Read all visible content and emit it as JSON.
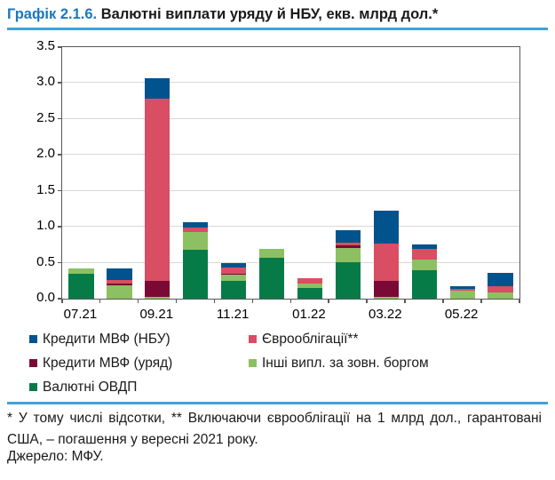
{
  "title": {
    "prefix": "Графік 2.1.6.",
    "text": " Валютні виплати уряду й НБУ, екв. млрд дол.*"
  },
  "colors": {
    "title_prefix_blue": "#1878BE",
    "rule_light_blue": "#41A1D8",
    "axis_gray": "#595959",
    "gridline_gray": "#D8D8D8",
    "imf_nbu_blue": "#00538D",
    "imf_gov_maroon": "#7A0A35",
    "ovdp_green": "#067B48",
    "eurobond_pink": "#D94E62",
    "other_light_green": "#8CC063"
  },
  "chart_data": {
    "type": "bar",
    "stacked": true,
    "title": "Валютні виплати уряду й НБУ, екв. млрд дол.",
    "xlabel": "",
    "ylabel": "",
    "ylim": [
      0,
      3.5
    ],
    "y_ticks": [
      0.0,
      0.5,
      1.0,
      1.5,
      2.0,
      2.5,
      3.0,
      3.5
    ],
    "grid": true,
    "legend_position": "bottom",
    "categories": [
      "07.21",
      "08.21",
      "09.21",
      "10.21",
      "11.21",
      "12.21",
      "01.22",
      "02.22",
      "03.22",
      "04.22",
      "05.22",
      "06.22"
    ],
    "x_tick_labels": [
      "07.21",
      "09.21",
      "11.21",
      "01.22",
      "03.22",
      "05.22"
    ],
    "series": [
      {
        "name": "Валютні ОВДП",
        "color": "#067B48",
        "values": [
          0.35,
          0.0,
          0.0,
          0.68,
          0.25,
          0.57,
          0.15,
          0.51,
          0.0,
          0.4,
          0.0,
          0.0
        ]
      },
      {
        "name": "Інші випл. за зовн. боргом",
        "color": "#8CC063",
        "values": [
          0.07,
          0.18,
          0.03,
          0.25,
          0.08,
          0.12,
          0.06,
          0.2,
          0.03,
          0.15,
          0.11,
          0.09
        ]
      },
      {
        "name": "Кредити МВФ (уряд)",
        "color": "#7A0A35",
        "values": [
          0.0,
          0.03,
          0.22,
          0.0,
          0.02,
          0.0,
          0.0,
          0.03,
          0.22,
          0.0,
          0.0,
          0.0
        ]
      },
      {
        "name": "Єврооблігації**",
        "color": "#D94E62",
        "values": [
          0.0,
          0.05,
          2.53,
          0.06,
          0.08,
          0.0,
          0.08,
          0.04,
          0.52,
          0.14,
          0.03,
          0.08
        ]
      },
      {
        "name": "Кредити МВФ (НБУ)",
        "color": "#00538D",
        "values": [
          0.0,
          0.16,
          0.29,
          0.07,
          0.06,
          0.0,
          0.0,
          0.17,
          0.45,
          0.06,
          0.03,
          0.19
        ]
      }
    ]
  },
  "legend": {
    "columns": [
      [
        {
          "label": "Кредити МВФ (НБУ)",
          "color": "#00538D"
        },
        {
          "label": "Кредити МВФ (уряд)",
          "color": "#7A0A35"
        },
        {
          "label": "Валютні ОВДП",
          "color": "#067B48"
        }
      ],
      [
        {
          "label": "Єврооблігації**",
          "color": "#D94E62"
        },
        {
          "label": "Інші випл. за зовн. боргом",
          "color": "#8CC063"
        }
      ]
    ]
  },
  "footnote": "* У тому числі відсотки, ** Включаючи єврооблігації на 1 млрд дол., гарантовані США, – погашення у вересні 2021 року.",
  "source": "Джерело: МФУ."
}
